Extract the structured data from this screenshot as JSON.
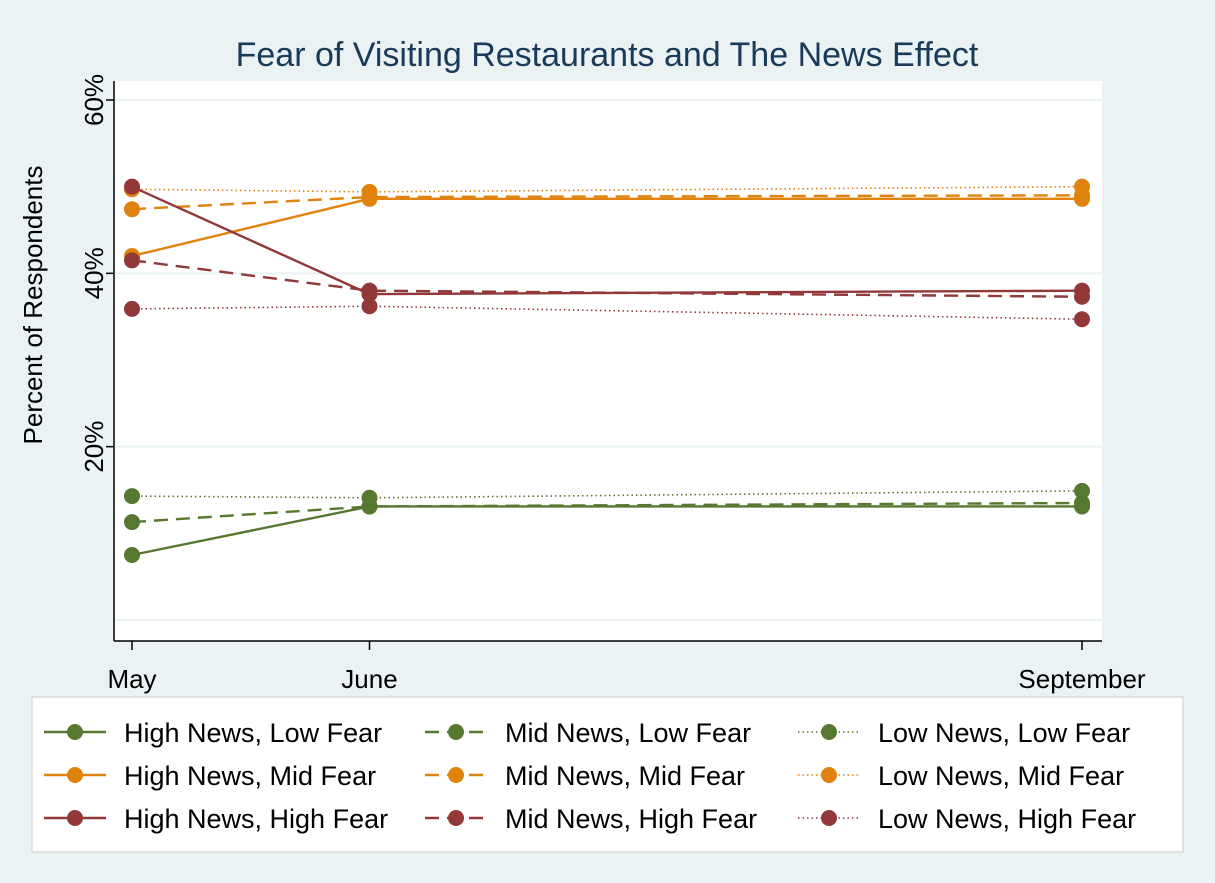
{
  "chart_data": {
    "type": "line",
    "title": "Fear of Visiting Restaurants and The News Effect",
    "ylabel": "Percent of Respondents",
    "xlabel": "",
    "categories": [
      "May",
      "June",
      "September"
    ],
    "x": [
      0,
      1,
      4
    ],
    "ylim": [
      0,
      0.6
    ],
    "yticks": [
      {
        "value": 0.2,
        "label": "20%"
      },
      {
        "value": 0.4,
        "label": "40%"
      },
      {
        "value": 0.6,
        "label": "60%"
      }
    ],
    "grid": true,
    "legend_position": "bottom",
    "series": [
      {
        "name": "High News, Low Fear",
        "color": "#567830",
        "dash": "solid",
        "values": [
          0.075,
          0.131,
          0.131
        ]
      },
      {
        "name": "Mid News, Low Fear",
        "color": "#567830",
        "dash": "dash",
        "values": [
          0.113,
          0.131,
          0.135
        ]
      },
      {
        "name": "Low News, Low Fear",
        "color": "#567830",
        "dash": "dot",
        "values": [
          0.143,
          0.141,
          0.149
        ]
      },
      {
        "name": "High News, Mid Fear",
        "color": "#e0820e",
        "dash": "solid",
        "values": [
          0.42,
          0.486,
          0.486
        ]
      },
      {
        "name": "Mid News, Mid Fear",
        "color": "#e0820e",
        "dash": "dash",
        "values": [
          0.474,
          0.488,
          0.49
        ]
      },
      {
        "name": "Low News, Mid Fear",
        "color": "#e0820e",
        "dash": "dot",
        "values": [
          0.497,
          0.494,
          0.5
        ]
      },
      {
        "name": "High News, High Fear",
        "color": "#923838",
        "dash": "solid",
        "values": [
          0.5,
          0.376,
          0.38
        ]
      },
      {
        "name": "Mid News, High Fear",
        "color": "#923838",
        "dash": "dash",
        "values": [
          0.415,
          0.38,
          0.373
        ]
      },
      {
        "name": "Low News, High Fear",
        "color": "#923838",
        "dash": "dot",
        "values": [
          0.359,
          0.362,
          0.347
        ]
      }
    ]
  }
}
